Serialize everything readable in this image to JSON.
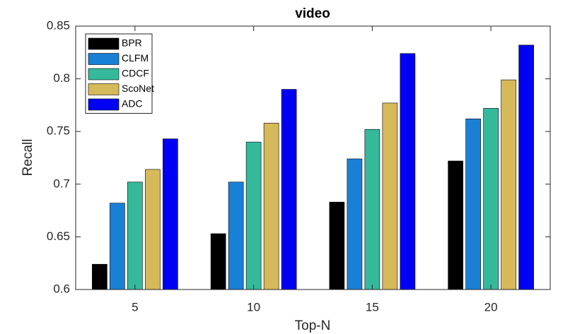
{
  "chart_data": {
    "type": "bar",
    "title": "video",
    "xlabel": "Top-N",
    "ylabel": "Recall",
    "categories": [
      "5",
      "10",
      "15",
      "20"
    ],
    "series": [
      {
        "name": "BPR",
        "color": "#000000",
        "values": [
          0.624,
          0.653,
          0.683,
          0.722
        ]
      },
      {
        "name": "CLFM",
        "color": "#1a80d6",
        "values": [
          0.682,
          0.702,
          0.724,
          0.762
        ]
      },
      {
        "name": "CDCF",
        "color": "#35b99b",
        "values": [
          0.702,
          0.74,
          0.752,
          0.772
        ]
      },
      {
        "name": "ScoNet",
        "color": "#d6b95a",
        "values": [
          0.714,
          0.758,
          0.777,
          0.799
        ]
      },
      {
        "name": "ADC",
        "color": "#0000f5",
        "values": [
          0.743,
          0.79,
          0.824,
          0.832
        ]
      }
    ],
    "ylim": [
      0.6,
      0.85
    ],
    "yticks": [
      0.6,
      0.65,
      0.7,
      0.75,
      0.8,
      0.85
    ],
    "legend": "upper-left"
  }
}
